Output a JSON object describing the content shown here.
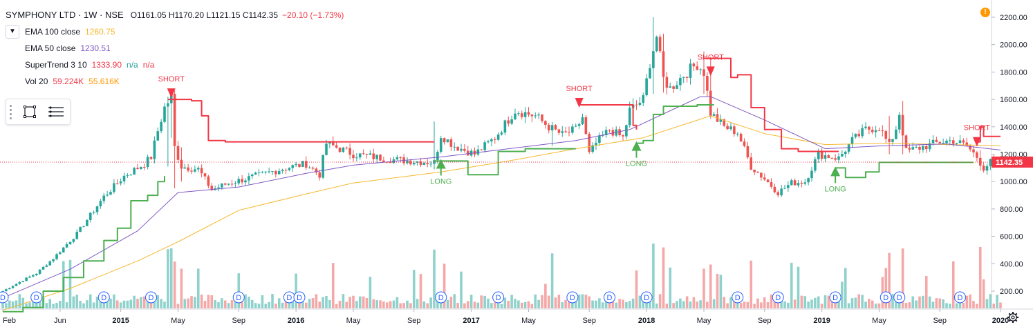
{
  "header": {
    "title": "SYMPHONY LTD · 1W · NSE",
    "ohlc": "O1161.05 H1170.20 L1121.15 C1142.35",
    "change": "−20.10 (−1.73%)",
    "alert_label": "!"
  },
  "legend": {
    "collapse_icon": "chevron-down-icon",
    "indicators": [
      {
        "name": "EMA 100 close",
        "value": "1260.75",
        "color": "#f5b82e"
      },
      {
        "name": "EMA 50 close",
        "value": "1230.51",
        "color": "#7e57c2"
      },
      {
        "name": "SuperTrend 3 10",
        "value": "1333.90",
        "color": "#f23645",
        "extra1": "n/a",
        "extra1_color": "#26a69a",
        "extra2": "n/a",
        "extra2_color": "#f23645"
      },
      {
        "name": "Vol 20",
        "value": "59.224K",
        "color": "#f23645",
        "value2": "55.616K",
        "value2_color": "#ff9800"
      }
    ]
  },
  "toolbox": {
    "icons": [
      "rectangle-tool-icon",
      "lines-menu-icon"
    ]
  },
  "colors": {
    "up": "#26a69a",
    "down": "#ef5350",
    "ema100": "#f5b82e",
    "ema50": "#7e57c2",
    "st_up": "#4caf50",
    "st_down": "#f23645",
    "vol_up": "#8fd2cc",
    "vol_down": "#f5a8a8",
    "last_price": "#f23645"
  },
  "chart_data": {
    "type": "candlestick",
    "price_axis": {
      "ticks": [
        "2200.00",
        "2000.00",
        "1800.00",
        "1600.00",
        "1400.00",
        "1200.00",
        "1000.00",
        "800.00",
        "600.00",
        "400.00",
        "200.00"
      ],
      "range": [
        -235,
        2265
      ]
    },
    "volume_axis_max": 620,
    "time_axis": {
      "labels": [
        "Feb",
        "Jun",
        "2015",
        "May",
        "Sep",
        "2016",
        "May",
        "Sep",
        "2017",
        "May",
        "Sep",
        "2018",
        "May",
        "Sep",
        "2019",
        "May",
        "Sep",
        "2020"
      ],
      "label_weeks": [
        0,
        17,
        35,
        52,
        70,
        87,
        104,
        122,
        139,
        156,
        174,
        191,
        208,
        226,
        243,
        260,
        278,
        296
      ]
    },
    "last_price": "1142.35",
    "last_price_value": 1142.35,
    "anchors": [
      [
        0,
        200
      ],
      [
        6,
        280
      ],
      [
        10,
        330
      ],
      [
        15,
        440
      ],
      [
        22,
        620
      ],
      [
        30,
        890
      ],
      [
        36,
        1040
      ],
      [
        42,
        1130
      ],
      [
        44,
        1180
      ],
      [
        46,
        1370
      ],
      [
        48,
        1540
      ],
      [
        50,
        1620
      ],
      [
        51,
        1250
      ],
      [
        53,
        1110
      ],
      [
        58,
        1090
      ],
      [
        62,
        940
      ],
      [
        66,
        980
      ],
      [
        72,
        1020
      ],
      [
        78,
        1060
      ],
      [
        84,
        1100
      ],
      [
        90,
        1130
      ],
      [
        94,
        1050
      ],
      [
        96,
        1280
      ],
      [
        100,
        1240
      ],
      [
        104,
        1200
      ],
      [
        110,
        1180
      ],
      [
        116,
        1160
      ],
      [
        122,
        1150
      ],
      [
        128,
        1140
      ],
      [
        130,
        1340
      ],
      [
        134,
        1260
      ],
      [
        140,
        1200
      ],
      [
        146,
        1320
      ],
      [
        152,
        1520
      ],
      [
        158,
        1480
      ],
      [
        162,
        1400
      ],
      [
        166,
        1340
      ],
      [
        170,
        1380
      ],
      [
        172,
        1470
      ],
      [
        174,
        1200
      ],
      [
        176,
        1280
      ],
      [
        180,
        1380
      ],
      [
        184,
        1320
      ],
      [
        186,
        1520
      ],
      [
        190,
        1600
      ],
      [
        192,
        1870
      ],
      [
        194,
        2060
      ],
      [
        196,
        1750
      ],
      [
        198,
        1680
      ],
      [
        202,
        1780
      ],
      [
        206,
        1860
      ],
      [
        208,
        1800
      ],
      [
        210,
        1500
      ],
      [
        214,
        1400
      ],
      [
        218,
        1360
      ],
      [
        222,
        1110
      ],
      [
        226,
        1020
      ],
      [
        230,
        920
      ],
      [
        234,
        990
      ],
      [
        238,
        1000
      ],
      [
        242,
        1200
      ],
      [
        248,
        1170
      ],
      [
        252,
        1300
      ],
      [
        256,
        1380
      ],
      [
        260,
        1400
      ],
      [
        263,
        1260
      ],
      [
        265,
        1390
      ],
      [
        266,
        1500
      ],
      [
        268,
        1220
      ],
      [
        274,
        1260
      ],
      [
        278,
        1290
      ],
      [
        282,
        1300
      ],
      [
        286,
        1260
      ],
      [
        289,
        1180
      ],
      [
        291,
        1100
      ],
      [
        293,
        1140
      ],
      [
        296,
        1140
      ]
    ],
    "spikes": [
      [
        49,
        1620,
        1110
      ],
      [
        50,
        1610,
        1320
      ],
      [
        51,
        1400,
        950
      ],
      [
        53,
        1250,
        1000
      ],
      [
        128,
        1440,
        1090
      ],
      [
        163,
        1380,
        1260
      ],
      [
        193,
        2200,
        1640
      ],
      [
        196,
        2080,
        1650
      ],
      [
        208,
        1950,
        1640
      ],
      [
        210,
        1910,
        1500
      ],
      [
        263,
        1480,
        1200
      ],
      [
        267,
        1590,
        1200
      ],
      [
        290,
        1230,
        1080
      ]
    ],
    "ema50_points": [
      [
        0,
        150
      ],
      [
        20,
        360
      ],
      [
        40,
        640
      ],
      [
        52,
        920
      ],
      [
        70,
        960
      ],
      [
        90,
        1060
      ],
      [
        104,
        1120
      ],
      [
        130,
        1180
      ],
      [
        150,
        1240
      ],
      [
        170,
        1300
      ],
      [
        186,
        1380
      ],
      [
        200,
        1540
      ],
      [
        207,
        1620
      ],
      [
        210,
        1620
      ],
      [
        226,
        1450
      ],
      [
        244,
        1240
      ],
      [
        260,
        1260
      ],
      [
        280,
        1275
      ],
      [
        296,
        1230
      ]
    ],
    "ema100_points": [
      [
        0,
        60
      ],
      [
        20,
        220
      ],
      [
        40,
        420
      ],
      [
        52,
        560
      ],
      [
        70,
        790
      ],
      [
        90,
        910
      ],
      [
        104,
        990
      ],
      [
        130,
        1070
      ],
      [
        150,
        1150
      ],
      [
        170,
        1240
      ],
      [
        190,
        1320
      ],
      [
        210,
        1480
      ],
      [
        226,
        1350
      ],
      [
        244,
        1270
      ],
      [
        262,
        1280
      ],
      [
        296,
        1262
      ]
    ],
    "supertrend_segments": [
      {
        "trend": "up",
        "points": [
          [
            0,
            50
          ],
          [
            6,
            80
          ],
          [
            12,
            200
          ],
          [
            18,
            300
          ],
          [
            24,
            420
          ],
          [
            30,
            570
          ],
          [
            34,
            660
          ],
          [
            38,
            860
          ],
          [
            43,
            900
          ],
          [
            46,
            1000
          ],
          [
            48,
            1040
          ]
        ]
      },
      {
        "trend": "down",
        "points": [
          [
            49,
            1600
          ],
          [
            54,
            1600
          ],
          [
            56,
            1590
          ],
          [
            59,
            1480
          ],
          [
            61,
            1300
          ],
          [
            66,
            1290
          ],
          [
            80,
            1290
          ],
          [
            100,
            1290
          ],
          [
            113,
            1290
          ],
          [
            128,
            1290
          ]
        ]
      },
      {
        "trend": "up",
        "points": [
          [
            128,
            1150
          ],
          [
            138,
            1050
          ],
          [
            142,
            1050
          ],
          [
            147,
            1220
          ],
          [
            155,
            1240
          ],
          [
            162,
            1240
          ],
          [
            168,
            1240
          ],
          [
            170,
            1240
          ]
        ]
      },
      {
        "trend": "down",
        "points": [
          [
            171,
            1560
          ],
          [
            186,
            1560
          ],
          [
            187,
            1410
          ],
          [
            188,
            1380
          ]
        ]
      },
      {
        "trend": "up",
        "points": [
          [
            188,
            1280
          ],
          [
            190,
            1300
          ],
          [
            193,
            1490
          ],
          [
            196,
            1550
          ],
          [
            206,
            1560
          ],
          [
            211,
            1560
          ]
        ]
      },
      {
        "trend": "down",
        "points": [
          [
            208,
            1900
          ],
          [
            212,
            1900
          ],
          [
            216,
            1760
          ],
          [
            218,
            1780
          ],
          [
            222,
            1540
          ],
          [
            226,
            1380
          ],
          [
            231,
            1240
          ],
          [
            236,
            1220
          ],
          [
            244,
            1220
          ],
          [
            246,
            1220
          ],
          [
            248,
            1220
          ]
        ]
      },
      {
        "trend": "up",
        "points": [
          [
            247,
            1100
          ],
          [
            250,
            1030
          ],
          [
            254,
            1030
          ],
          [
            256,
            1070
          ],
          [
            260,
            1140
          ],
          [
            288,
            1140
          ]
        ]
      },
      {
        "trend": "down",
        "points": [
          [
            289,
            1290
          ],
          [
            290,
            1400
          ],
          [
            291,
            1330
          ],
          [
            296,
            1330
          ]
        ]
      }
    ],
    "signals": [
      {
        "type": "SHORT",
        "week": 50,
        "price": 1610
      },
      {
        "type": "LONG",
        "week": 130,
        "price": 1165
      },
      {
        "type": "SHORT",
        "week": 171,
        "price": 1540
      },
      {
        "type": "LONG",
        "week": 188,
        "price": 1295
      },
      {
        "type": "SHORT",
        "week": 210,
        "price": 1770
      },
      {
        "type": "LONG",
        "week": 247,
        "price": 1110
      },
      {
        "type": "SHORT",
        "week": 289,
        "price": 1255
      }
    ],
    "dividend_marks": {
      "label": "D",
      "weeks": [
        0,
        10,
        30,
        44,
        70,
        85,
        88,
        130,
        147,
        169,
        180,
        191,
        218,
        230,
        247,
        262,
        266,
        284
      ]
    }
  }
}
